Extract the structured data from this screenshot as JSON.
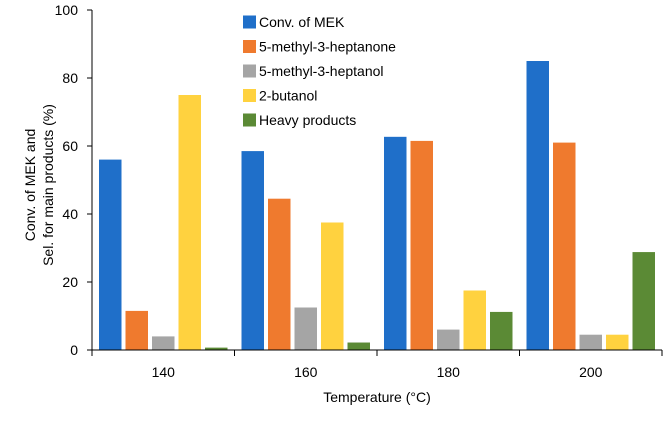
{
  "chart_data": {
    "type": "bar",
    "title": "",
    "xlabel": "Temperature (°C)",
    "ylabel_lines": [
      "Conv. of MEK and",
      "Sel. for main products (%)"
    ],
    "ylim": [
      0,
      100
    ],
    "yticks": [
      0,
      20,
      40,
      60,
      80,
      100
    ],
    "categories": [
      "140",
      "160",
      "180",
      "200"
    ],
    "legend_position": "top-center",
    "series": [
      {
        "name": "Conv. of MEK",
        "color": "#1f6fc9",
        "values": [
          56,
          58.5,
          62.7,
          85
        ]
      },
      {
        "name": "5-methyl-3-heptanone",
        "color": "#ef7a2e",
        "values": [
          11.5,
          44.5,
          61.5,
          61
        ]
      },
      {
        "name": "5-methyl-3-heptanol",
        "color": "#a5a5a5",
        "values": [
          4,
          12.5,
          6,
          4.5
        ]
      },
      {
        "name": "2-butanol",
        "color": "#ffd23f",
        "values": [
          75,
          37.5,
          17.5,
          4.5
        ]
      },
      {
        "name": "Heavy products",
        "color": "#5b8a35",
        "values": [
          0.7,
          2.2,
          11.2,
          28.8
        ]
      }
    ]
  }
}
